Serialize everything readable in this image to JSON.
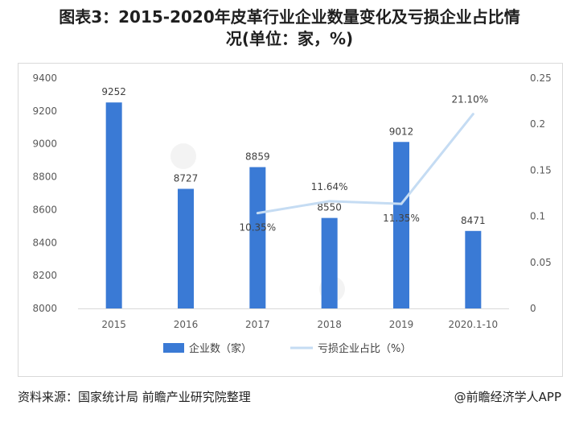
{
  "page": {
    "title_line1": "图表3：2015-2020年皮革行业企业数量变化及亏损企业占比情",
    "title_line2": "况(单位：家，%)",
    "source": "资料来源：国家统计局 前瞻产业研究院整理",
    "credit": "@前瞻经济学人APP"
  },
  "chart_data": {
    "type": "bar",
    "categories": [
      "2015",
      "2016",
      "2017",
      "2018",
      "2019",
      "2020.1-10"
    ],
    "series": [
      {
        "name": "企业数（家）",
        "type": "bar",
        "axis": "left",
        "values": [
          9252,
          8727,
          8859,
          8550,
          9012,
          8471
        ],
        "labels": [
          "9252",
          "8727",
          "8859",
          "8550",
          "9012",
          "8471"
        ],
        "color": "#3a7ad5"
      },
      {
        "name": "亏损企业占比（%）",
        "type": "line",
        "axis": "right",
        "values": [
          null,
          null,
          0.1035,
          0.1164,
          0.1135,
          0.211
        ],
        "labels": [
          "",
          "",
          "10.35%",
          "11.64%",
          "11.35%",
          "21.10%"
        ],
        "color": "#c5dcf3"
      }
    ],
    "y_left": {
      "min": 8000,
      "max": 9400,
      "ticks": [
        "8000",
        "8200",
        "8400",
        "8600",
        "8800",
        "9000",
        "9200",
        "9400"
      ]
    },
    "y_right": {
      "min": 0,
      "max": 0.25,
      "ticks": [
        "0",
        "0.05",
        "0.1",
        "0.15",
        "0.2",
        "0.25"
      ]
    },
    "grid": false,
    "legend_position": "bottom"
  }
}
